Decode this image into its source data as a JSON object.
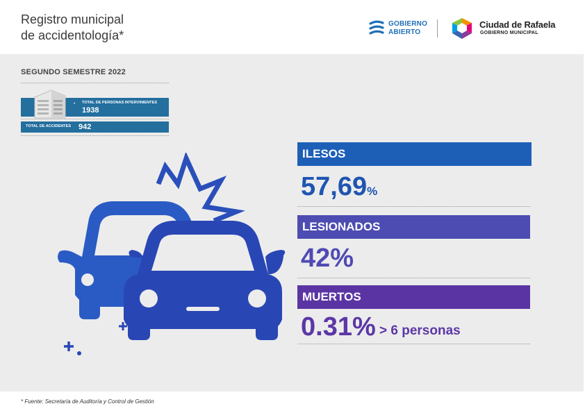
{
  "header": {
    "title_line1": "Registro municipal",
    "title_line2": "de accidentología*",
    "logo_gobierno_line1": "GOBIERNO",
    "logo_gobierno_line2": "ABIERTO",
    "logo_city_name": "Ciudad de Rafaela",
    "logo_city_sub": "GOBIERNO MUNICIPAL"
  },
  "summary": {
    "period": "SEGUNDO SEMESTRE 2022",
    "persons_label": "TOTAL DE PERSONAS INTERVINIENTES",
    "persons_value": "1938",
    "accidents_label": "TOTAL DE ACCIDENTES",
    "accidents_value": "942"
  },
  "stats": {
    "ilesos_label": "ILESOS",
    "ilesos_value": "57,69",
    "ilesos_unit": "%",
    "lesionados_label": "LESIONADOS",
    "lesionados_value": "42%",
    "muertos_label": "MUERTOS",
    "muertos_value": "0.31%",
    "muertos_note": "> 6 personas"
  },
  "footer": {
    "source": "* Fuente:  Secretaría de Auditoría y Control de Gestión"
  },
  "colors": {
    "ilesos": "#1d5fb7",
    "lesionados": "#4c4cb2",
    "muertos": "#5b34a3",
    "summary_bar": "#236f9e"
  }
}
